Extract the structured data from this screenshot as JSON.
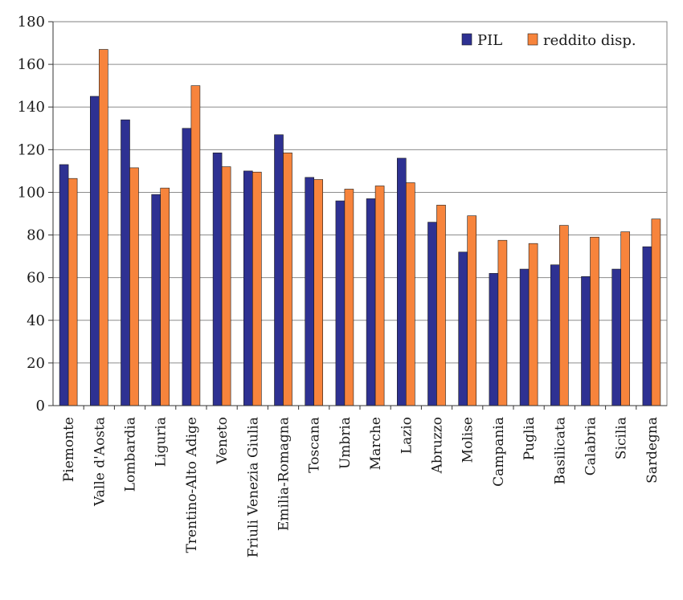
{
  "chart_data": {
    "type": "bar",
    "categories": [
      "Piemonte",
      "Valle d'Aosta",
      "Lombardia",
      "Liguria",
      "Trentino-Alto Adige",
      "Veneto",
      "Friuli Venezia Giulia",
      "Emilia-Romagna",
      "Toscana",
      "Umbria",
      "Marche",
      "Lazio",
      "Abruzzo",
      "Molise",
      "Campania",
      "Puglia",
      "Basilicata",
      "Calabria",
      "Sicilia",
      "Sardegna"
    ],
    "series": [
      {
        "name": "PIL",
        "color": "#2e3192",
        "values": [
          113,
          145,
          134,
          99,
          130,
          118.5,
          110,
          127,
          107,
          96,
          97,
          116,
          86,
          72,
          62,
          64,
          66,
          60.5,
          64,
          74.5
        ]
      },
      {
        "name": "reddito disp.",
        "color": "#f7843c",
        "values": [
          106.5,
          167,
          111.5,
          102,
          150,
          112,
          109.5,
          118.5,
          106,
          101.5,
          103,
          104.5,
          94,
          89,
          77.5,
          76,
          84.5,
          79,
          81.5,
          87.5
        ]
      }
    ],
    "y_ticks": [
      "0",
      "20",
      "40",
      "60",
      "80",
      "100",
      "120",
      "140",
      "160",
      "180"
    ],
    "ylim": [
      0,
      180
    ],
    "grid": true,
    "legend_position": "top-right",
    "title": "",
    "xlabel": "",
    "ylabel": ""
  }
}
